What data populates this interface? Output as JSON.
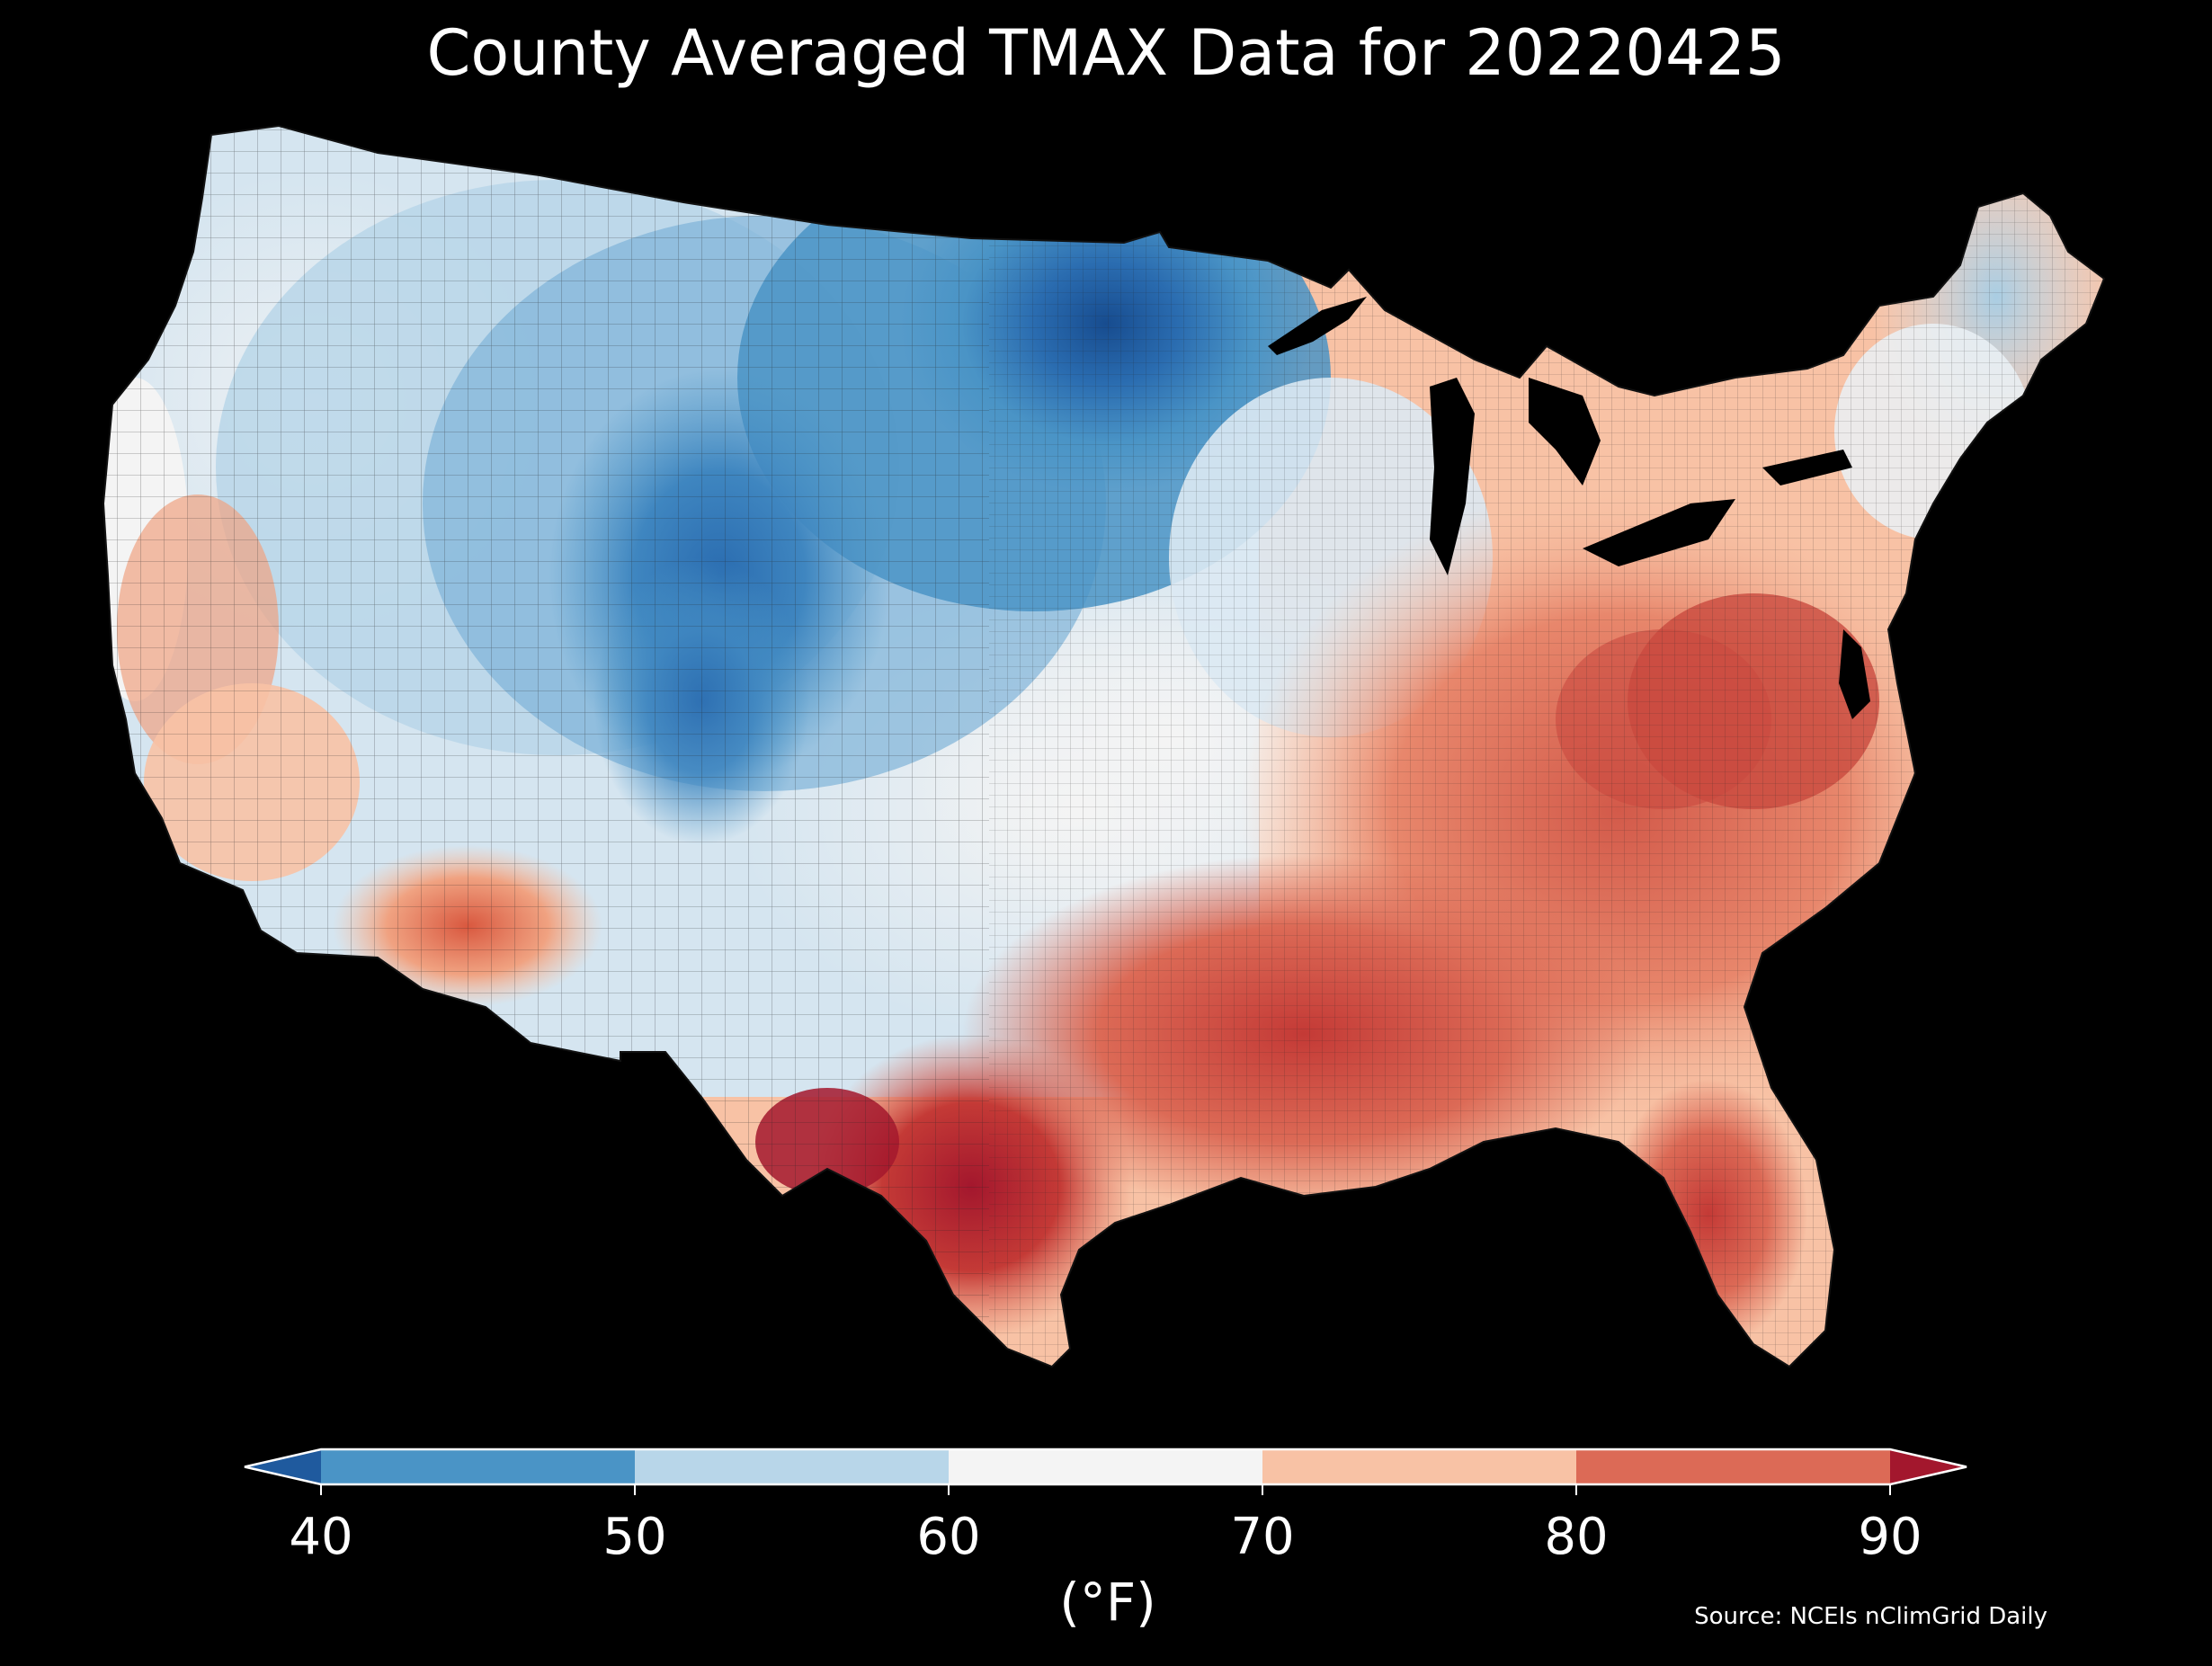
{
  "title": "County Averaged TMAX Data for 20220425",
  "colorbar": {
    "ticks": [
      "40",
      "50",
      "60",
      "70",
      "80",
      "90"
    ],
    "unit_label": "(°F)",
    "bins": [
      {
        "range": "<40",
        "color": "#1f5a9e"
      },
      {
        "range": "40-50",
        "color": "#4a94c6"
      },
      {
        "range": "50-60",
        "color": "#b8d6e9"
      },
      {
        "range": "60-70",
        "color": "#f4f4f4"
      },
      {
        "range": "70-80",
        "color": "#f8c2a5"
      },
      {
        "range": "80-90",
        "color": "#dc6a56"
      },
      {
        "range": ">90",
        "color": "#a3172d"
      }
    ]
  },
  "source": "Source: NCEIs nClimGrid Daily",
  "map": {
    "region": "Contiguous United States",
    "background": "#000000",
    "county_border_color": "#222222"
  }
}
